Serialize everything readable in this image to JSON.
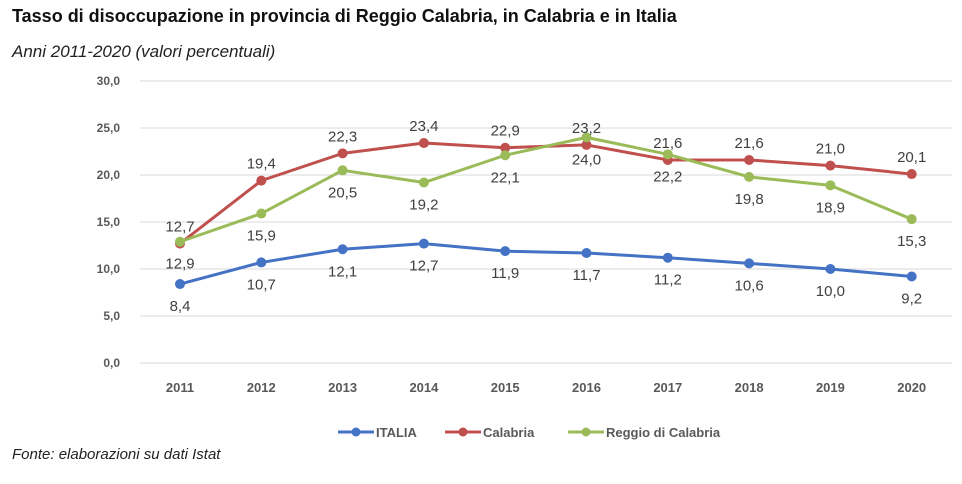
{
  "header": {
    "title": "Tasso di disoccupazione in provincia di Reggio Calabria, in Calabria e in Italia",
    "subtitle": "Anni 2011-2020 (valori percentuali)"
  },
  "footer": {
    "source": "Fonte: elaborazioni su dati Istat"
  },
  "chart_data": {
    "type": "line",
    "title": "Tasso di disoccupazione in provincia di Reggio Calabria, in Calabria e in Italia",
    "subtitle": "Anni 2011-2020 (valori percentuali)",
    "xlabel": "",
    "ylabel": "",
    "ylim": [
      0,
      30
    ],
    "yticks": [
      0,
      5,
      10,
      15,
      20,
      25,
      30
    ],
    "ytick_labels": [
      "0,0",
      "5,0",
      "10,0",
      "15,0",
      "20,0",
      "25,0",
      "30,0"
    ],
    "categories": [
      "2011",
      "2012",
      "2013",
      "2014",
      "2015",
      "2016",
      "2017",
      "2018",
      "2019",
      "2020"
    ],
    "grid": true,
    "legend_position": "bottom",
    "series": [
      {
        "name": "ITALIA",
        "color": "#4472c4",
        "values": [
          8.4,
          10.7,
          12.1,
          12.7,
          11.9,
          11.7,
          11.2,
          10.6,
          10.0,
          9.2
        ],
        "labels": [
          "8,4",
          "10,7",
          "12,1",
          "12,7",
          "11,9",
          "11,7",
          "11,2",
          "10,6",
          "10,0",
          "9,2"
        ],
        "label_pos": [
          "below",
          "below",
          "below",
          "below",
          "below",
          "below",
          "below",
          "below",
          "below",
          "below"
        ]
      },
      {
        "name": "Calabria",
        "color": "#c0504d",
        "values": [
          12.7,
          19.4,
          22.3,
          23.4,
          22.9,
          23.2,
          21.6,
          21.6,
          21.0,
          20.1
        ],
        "labels": [
          "12,7",
          "19,4",
          "22,3",
          "23,4",
          "22,9",
          "23,2",
          "21,6",
          "21,6",
          "21,0",
          "20,1"
        ],
        "label_pos": [
          "above",
          "above",
          "above",
          "above",
          "above",
          "above",
          "above",
          "above",
          "above",
          "above"
        ]
      },
      {
        "name": "Reggio di Calabria",
        "color": "#9bbb59",
        "values": [
          12.9,
          15.9,
          20.5,
          19.2,
          22.1,
          24.0,
          22.2,
          19.8,
          18.9,
          15.3
        ],
        "labels": [
          "12,9",
          "15,9",
          "20,5",
          "19,2",
          "22,1",
          "24,0",
          "22,2",
          "19,8",
          "18,9",
          "15,3"
        ],
        "label_pos": [
          "below",
          "below",
          "below",
          "below",
          "below",
          "below",
          "below",
          "below",
          "below",
          "below"
        ]
      }
    ]
  }
}
